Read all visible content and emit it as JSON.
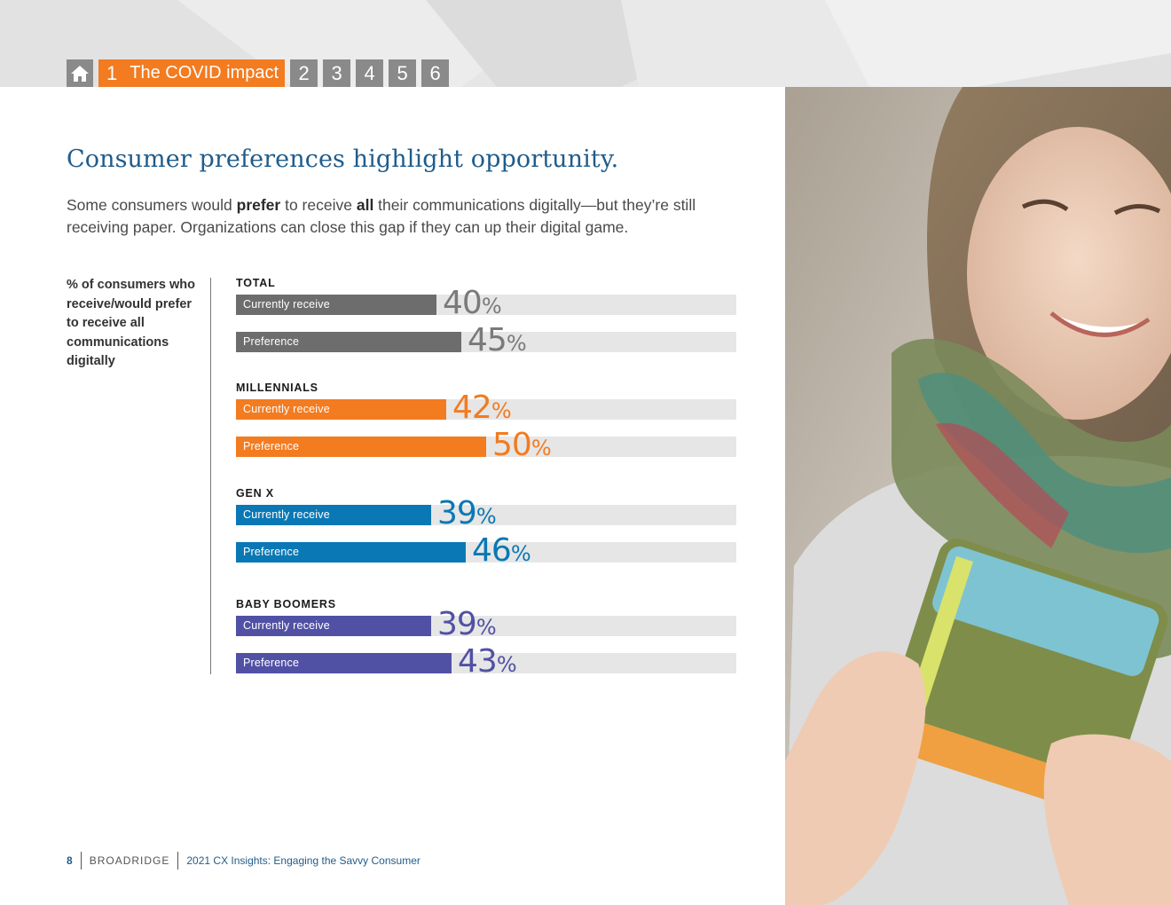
{
  "nav": {
    "active_number": "1",
    "active_label": "The COVID impact",
    "tabs": [
      "2",
      "3",
      "4",
      "5",
      "6"
    ]
  },
  "headline": "Consumer preferences highlight opportunity.",
  "intro": {
    "part1": "Some consumers would ",
    "bold1": "prefer",
    "part2": " to receive ",
    "bold2": "all",
    "part3": " their communications digitally—but they’re still receiving paper. Organizations can close this gap if they can up their digital game."
  },
  "side_label": "% of consumers who receive/would prefer to receive all communications digitally",
  "chart_data": {
    "type": "bar",
    "orientation": "horizontal",
    "unit": "%",
    "xlim": [
      0,
      100
    ],
    "bar_labels": [
      "Currently receive",
      "Preference"
    ],
    "groups": [
      {
        "name": "TOTAL",
        "color": "#6d6d6d",
        "values": [
          40,
          45
        ]
      },
      {
        "name": "MILLENNIALS",
        "color": "#f37b20",
        "values": [
          42,
          50
        ]
      },
      {
        "name": "GEN X",
        "color": "#0a78b4",
        "values": [
          39,
          46
        ]
      },
      {
        "name": "BABY BOOMERS",
        "color": "#5051a4",
        "values": [
          39,
          43
        ]
      }
    ],
    "track_color": "#e6e6e6"
  },
  "footer": {
    "page": "8",
    "brand": "BROADRIDGE",
    "doc_title": "2021 CX Insights: Engaging the Savvy Consumer"
  },
  "icons": {
    "home": "home-icon"
  },
  "colors": {
    "accent": "#f37b20",
    "headline": "#1f5c8b",
    "nav_gray": "#8a8a8a"
  }
}
